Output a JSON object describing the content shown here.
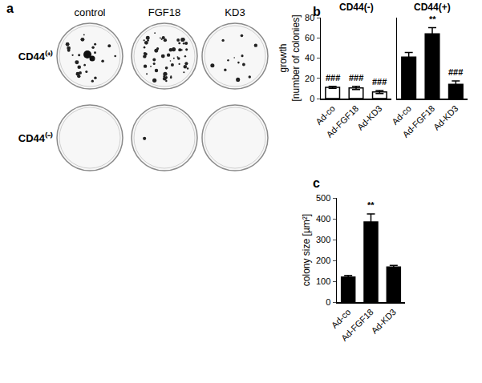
{
  "panel_labels": [
    "a",
    "b",
    "c"
  ],
  "image_panel": {
    "columns": [
      "control",
      "FGF18",
      "KD3"
    ],
    "rows": [
      "CD44⁽⁺⁾",
      "CD44⁽⁻⁾"
    ]
  },
  "chart_data": [
    {
      "type": "bar",
      "title": "CD44(-)",
      "ylabel": "growth\n[number of colonies]",
      "categories": [
        "Ad-co",
        "Ad-FGF18",
        "Ad-KD3"
      ],
      "values": [
        11,
        10.5,
        6.5
      ],
      "errors": [
        1,
        1.5,
        1.5
      ],
      "color": "#ffffff",
      "ylim": [
        0,
        80
      ],
      "yticks": [
        0,
        20,
        40,
        60,
        80
      ],
      "annotations": [
        {
          "category": "Ad-co",
          "text": "###"
        },
        {
          "category": "Ad-FGF18",
          "text": "###"
        },
        {
          "category": "Ad-KD3",
          "text": "###"
        }
      ]
    },
    {
      "type": "bar",
      "title": "CD44(+)",
      "categories": [
        "Ad-co",
        "Ad-FGF18",
        "Ad-KD3"
      ],
      "values": [
        41,
        64,
        14
      ],
      "errors": [
        4.5,
        6,
        3.5
      ],
      "color": "#000000",
      "ylim": [
        0,
        80
      ],
      "yticks": [
        0,
        20,
        40,
        60,
        80
      ],
      "tick_labels": "x",
      "annotations": [
        {
          "category": "Ad-FGF18",
          "text": "**"
        },
        {
          "category": "Ad-KD3",
          "text": "###"
        }
      ]
    },
    {
      "type": "bar",
      "ylabel": "colony size [µm²]",
      "categories": [
        "Ad-co",
        "Ad-FGF18",
        "Ad-KD3"
      ],
      "values": [
        120,
        385,
        168
      ],
      "errors": [
        8,
        38,
        8
      ],
      "color": "#000000",
      "ylim": [
        0,
        500
      ],
      "yticks": [
        0,
        100,
        200,
        300,
        400,
        500
      ],
      "annotations": [
        {
          "category": "Ad-FGF18",
          "text": "**"
        }
      ]
    }
  ]
}
